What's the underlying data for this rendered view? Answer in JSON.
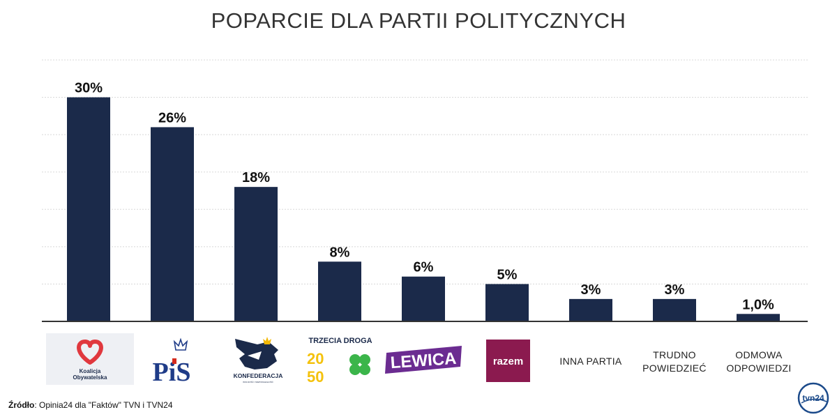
{
  "chart_data": {
    "type": "bar",
    "title": "POPARCIE DLA PARTII POLITYCZNYCH",
    "categories": [
      "Koalicja Obywatelska",
      "PiS",
      "Konfederacja",
      "Trzecia Droga",
      "Lewica",
      "Razem",
      "INNA PARTIA",
      "TRUDNO POWIEDZIEĆ",
      "ODMOWA ODPOWIEDZI"
    ],
    "values": [
      30,
      26,
      18,
      8,
      6,
      5,
      3,
      3,
      1.0
    ],
    "value_labels": [
      "30%",
      "26%",
      "18%",
      "8%",
      "6%",
      "5%",
      "3%",
      "3%",
      "1,0%"
    ],
    "ylim": [
      0,
      35
    ],
    "gridlines": [
      5,
      10,
      15,
      20,
      25,
      30,
      35
    ],
    "grid": true,
    "bar_color": "#1b2a4a",
    "xlabel": "",
    "ylabel": ""
  },
  "logos": {
    "ko_line1": "Koalicja",
    "ko_line2": "Obywatelska",
    "pis": "PiS",
    "konf": "KONFEDERACJA",
    "konf_sub": "WOLNOŚĆ I NIEPODLEGŁOŚĆ",
    "td_title": "TRZECIA DROGA",
    "td_2050_a": "20",
    "td_2050_b": "50",
    "lewica": "LEWICA",
    "razem": "razem"
  },
  "labels": {
    "inna_partia": "INNA PARTIA",
    "trudno_1": "TRUDNO",
    "trudno_2": "POWIEDZIEĆ",
    "odmowa_1": "ODMOWA",
    "odmowa_2": "ODPOWIEDZI"
  },
  "source": {
    "label": "Źródło",
    "text": ": Opinia24 dla \"Faktów\" TVN i TVN24"
  },
  "brand": {
    "tvn_logo_text": "tvn24"
  },
  "colors": {
    "bar": "#1b2a4a",
    "ko_heart": "#e0383e",
    "pis_blue": "#1f3c88",
    "pis_red": "#d52b1e",
    "konf_navy": "#1b2a4a",
    "konf_gold": "#f2b705",
    "td_yellow": "#f4c20d",
    "td_green": "#3bb54a",
    "lewica": "#6b2c91",
    "razem": "#8b1a4f",
    "logo_bg": "#eef0f4"
  }
}
